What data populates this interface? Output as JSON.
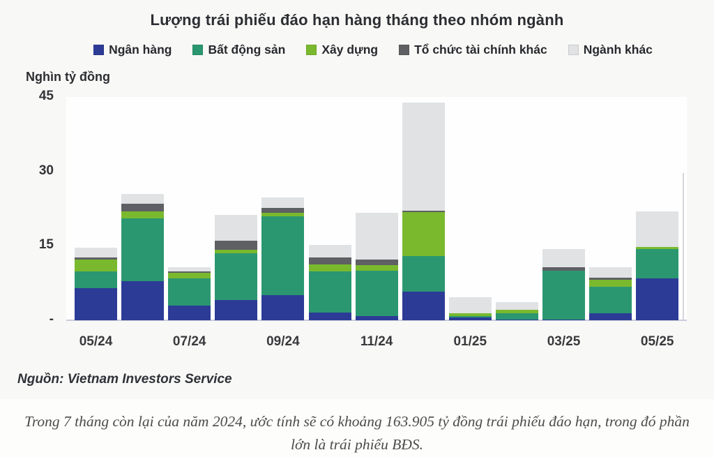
{
  "title": "Lượng trái phiếu đáo hạn hàng tháng theo nhóm ngành",
  "y_axis": {
    "unit_label": "Nghìn tỷ đồng",
    "tick_labels": [
      "45",
      "30",
      "15",
      "-"
    ],
    "tick_values": [
      45,
      30,
      15,
      0
    ]
  },
  "x_axis": {
    "shown_tick_labels": [
      "05/24",
      "07/24",
      "09/24",
      "11/24",
      "01/25",
      "03/25",
      "05/25"
    ],
    "shown_tick_indices": [
      0,
      2,
      4,
      6,
      8,
      10,
      12
    ]
  },
  "source": "Nguồn: Vietnam Investors Service",
  "caption": "Trong 7 tháng còn lại của năm 2024, ước tính sẽ có khoảng 163.905 tỷ đồng trái phiếu đáo hạn, trong đó phần lớn là trái phiếu BĐS.",
  "chart_data": {
    "type": "bar",
    "stacked": true,
    "title": "Lượng trái phiếu đáo hạn hàng tháng theo nhóm ngành",
    "xlabel": "",
    "ylabel": "Nghìn tỷ đồng",
    "ylim": [
      0,
      45
    ],
    "grid": false,
    "legend_position": "top",
    "categories": [
      "05/24",
      "06/24",
      "07/24",
      "08/24",
      "09/24",
      "10/24",
      "11/24",
      "12/24",
      "01/25",
      "02/25",
      "03/25",
      "04/25",
      "05/25"
    ],
    "series": [
      {
        "name": "Ngân hàng",
        "color": "#2c3b96",
        "values": [
          6.5,
          7.9,
          3.0,
          4.1,
          5.1,
          1.6,
          0.9,
          5.8,
          0.5,
          0.1,
          0.1,
          1.4,
          8.4
        ]
      },
      {
        "name": "Bất động sản",
        "color": "#2b9771",
        "values": [
          3.4,
          12.6,
          5.5,
          9.4,
          15.8,
          8.3,
          9.1,
          7.1,
          0.3,
          1.3,
          9.9,
          5.4,
          5.9
        ]
      },
      {
        "name": "Xây dựng",
        "color": "#7ab92e",
        "values": [
          2.4,
          1.5,
          1.0,
          0.7,
          0.8,
          1.4,
          1.1,
          8.9,
          0.6,
          0.7,
          0.0,
          1.4,
          0.4
        ]
      },
      {
        "name": "Tổ chức tài chính khác",
        "color": "#5e6063",
        "values": [
          0.3,
          1.5,
          0.4,
          1.8,
          1.0,
          1.4,
          1.2,
          0.3,
          0.0,
          0.0,
          0.7,
          0.4,
          0.0
        ]
      },
      {
        "name": "Ngành khác",
        "color": "#e0e2e4",
        "values": [
          2.0,
          2.0,
          0.8,
          5.2,
          2.0,
          2.5,
          9.4,
          21.8,
          3.3,
          1.6,
          3.6,
          2.1,
          7.2
        ]
      }
    ]
  }
}
